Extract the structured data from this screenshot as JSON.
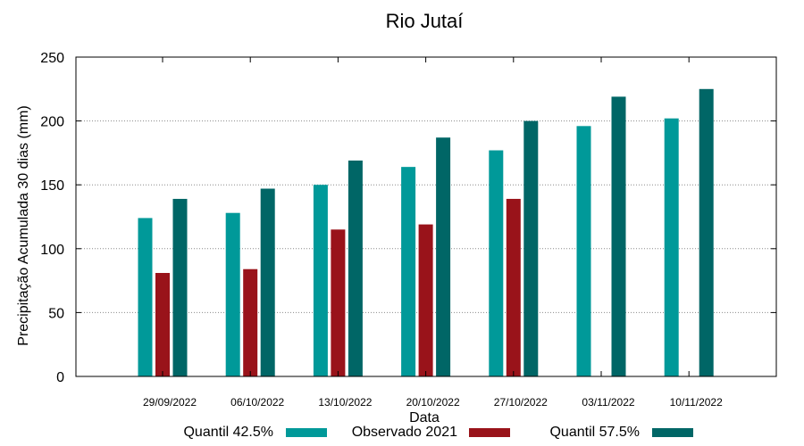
{
  "chart_data": {
    "type": "bar",
    "title": "Rio Jutaí",
    "xlabel": "Data",
    "ylabel": "Precipitação Acumulada 30 dias (mm)",
    "ylim": [
      0,
      250
    ],
    "yticks": [
      0,
      50,
      100,
      150,
      200,
      250
    ],
    "grid": "horizontal dotted",
    "legend_position": "bottom",
    "categories": [
      "29/09/2022",
      "06/10/2022",
      "13/10/2022",
      "20/10/2022",
      "27/10/2022",
      "03/11/2022",
      "10/11/2022"
    ],
    "series": [
      {
        "name": "Quantil 42.5%",
        "color": "#009999",
        "values": [
          124,
          128,
          150,
          164,
          177,
          196,
          202
        ]
      },
      {
        "name": "Observado 2021",
        "color": "#99131a",
        "values": [
          81,
          84,
          115,
          119,
          139,
          null,
          null
        ]
      },
      {
        "name": "Quantil 57.5%",
        "color": "#006666",
        "values": [
          139,
          147,
          169,
          187,
          200,
          219,
          225
        ]
      }
    ]
  }
}
